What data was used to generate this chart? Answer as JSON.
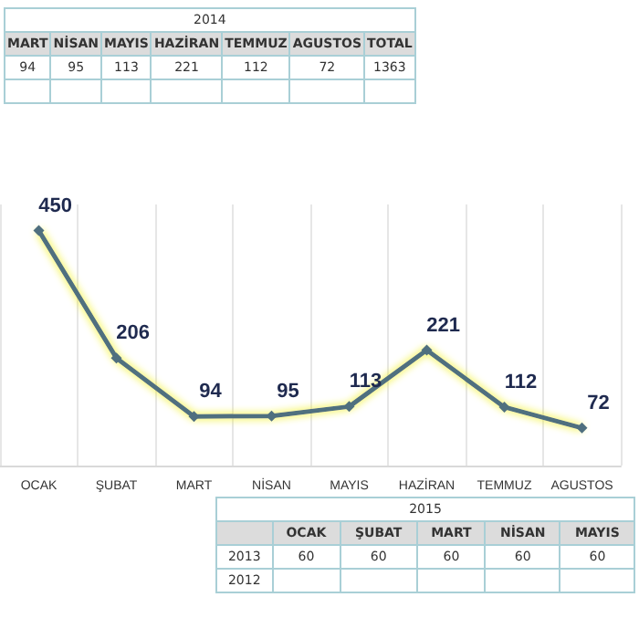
{
  "chart_data": {
    "type": "line",
    "categories": [
      "OCAK",
      "ŞUBAT",
      "MART",
      "NİSAN",
      "MAYIS",
      "HAZİRAN",
      "TEMMUZ",
      "AGUSTOS"
    ],
    "series": [
      {
        "color": "#4f6f7f",
        "values": [
          450,
          206,
          94,
          95,
          113,
          221,
          112,
          72
        ]
      }
    ],
    "data_labels": true,
    "tick_labels": "x",
    "grid": "x",
    "marker": "diamond",
    "annotations": [
      "2014",
      "MART",
      "NİSAN",
      "MAYIS",
      "HAZİRAN",
      "TEMMUZ",
      "AGUSTOS",
      "TOTAL",
      "94",
      "95",
      "113",
      "221",
      "112",
      "72",
      "1363",
      "2015",
      "OCAK",
      "ŞUBAT",
      "MART",
      "NİSAN",
      "MAYIS",
      "2013",
      "60",
      "60",
      "60",
      "60",
      "60",
      "2012"
    ]
  }
}
